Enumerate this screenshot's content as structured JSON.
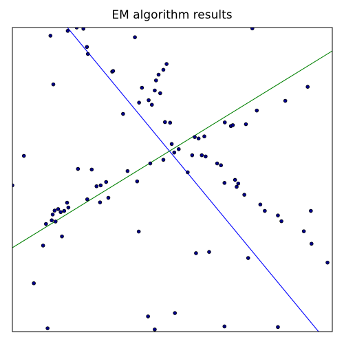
{
  "chart_data": {
    "type": "scatter",
    "title": "EM algorithm results",
    "xlabel": "",
    "ylabel": "",
    "xlim": [
      0,
      1
    ],
    "ylim": [
      0,
      1
    ],
    "grid": false,
    "ticks": false,
    "legend": "none",
    "point_color": "#00008b",
    "point_edge_color": "#000000",
    "points": [
      [
        0.11,
        0.011
      ],
      [
        0.445,
        0.007
      ],
      [
        0.663,
        0.017
      ],
      [
        0.83,
        0.015
      ],
      [
        0.985,
        0.227
      ],
      [
        0.067,
        0.159
      ],
      [
        0.424,
        0.05
      ],
      [
        0.508,
        0.061
      ],
      [
        0.574,
        0.258
      ],
      [
        0.615,
        0.262
      ],
      [
        0.096,
        0.283
      ],
      [
        0.737,
        0.242
      ],
      [
        0.155,
        0.313
      ],
      [
        0.395,
        0.329
      ],
      [
        0.935,
        0.289
      ],
      [
        0.911,
        0.33
      ],
      [
        0.933,
        0.397
      ],
      [
        0.105,
        0.354
      ],
      [
        0.123,
        0.366
      ],
      [
        0.135,
        0.362
      ],
      [
        0.126,
        0.385
      ],
      [
        0.132,
        0.398
      ],
      [
        0.143,
        0.403
      ],
      [
        0.151,
        0.393
      ],
      [
        0.162,
        0.397
      ],
      [
        0.175,
        0.408
      ],
      [
        0.171,
        0.424
      ],
      [
        0.234,
        0.435
      ],
      [
        0.274,
        0.425
      ],
      [
        0.3,
        0.44
      ],
      [
        0.263,
        0.478
      ],
      [
        0.276,
        0.481
      ],
      [
        0.293,
        0.492
      ],
      [
        0.39,
        0.494
      ],
      [
        0.36,
        0.528
      ],
      [
        0.248,
        0.533
      ],
      [
        0.205,
        0.535
      ],
      [
        0.725,
        0.45
      ],
      [
        0.775,
        0.418
      ],
      [
        0.789,
        0.397
      ],
      [
        0.83,
        0.382
      ],
      [
        0.841,
        0.363
      ],
      [
        0.663,
        0.489
      ],
      [
        0.696,
        0.499
      ],
      [
        0.706,
        0.487
      ],
      [
        0.701,
        0.476
      ],
      [
        0.548,
        0.524
      ],
      [
        0.431,
        0.553
      ],
      [
        0.472,
        0.565
      ],
      [
        0.506,
        0.589
      ],
      [
        0.498,
        0.617
      ],
      [
        0.52,
        0.6
      ],
      [
        0.562,
        0.58
      ],
      [
        0.592,
        0.58
      ],
      [
        0.604,
        0.576
      ],
      [
        0.64,
        0.553
      ],
      [
        0.652,
        0.547
      ],
      [
        0.57,
        0.64
      ],
      [
        0.582,
        0.635
      ],
      [
        0.6,
        0.642
      ],
      [
        0.664,
        0.688
      ],
      [
        0.683,
        0.676
      ],
      [
        0.689,
        0.679
      ],
      [
        0.73,
        0.682
      ],
      [
        0.764,
        0.727
      ],
      [
        0.853,
        0.759
      ],
      [
        0.923,
        0.805
      ],
      [
        0.036,
        0.578
      ],
      [
        0.346,
        0.716
      ],
      [
        0.396,
        0.753
      ],
      [
        0.426,
        0.761
      ],
      [
        0.436,
        0.746
      ],
      [
        0.462,
        0.784
      ],
      [
        0.477,
        0.689
      ],
      [
        0.493,
        0.687
      ],
      [
        0.445,
        0.793
      ],
      [
        0.449,
        0.826
      ],
      [
        0.457,
        0.845
      ],
      [
        0.472,
        0.861
      ],
      [
        0.482,
        0.88
      ],
      [
        0.405,
        0.802
      ],
      [
        0.312,
        0.855
      ],
      [
        0.315,
        0.857
      ],
      [
        0.236,
        0.913
      ],
      [
        0.233,
        0.936
      ],
      [
        0.173,
        0.989
      ],
      [
        0.222,
        0.996
      ],
      [
        0.201,
        1.0
      ],
      [
        0.119,
        0.973
      ],
      [
        0.383,
        0.968
      ],
      [
        0.75,
        0.997
      ],
      [
        0.128,
        0.813
      ],
      [
        0.0,
        0.481
      ]
    ],
    "lines": [
      {
        "color": "#0000ff",
        "from": [
          0.172,
          1.0
        ],
        "to": [
          0.957,
          0.0
        ]
      },
      {
        "color": "#008000",
        "from": [
          0.0,
          0.276
        ],
        "to": [
          1.0,
          0.923
        ]
      }
    ]
  }
}
